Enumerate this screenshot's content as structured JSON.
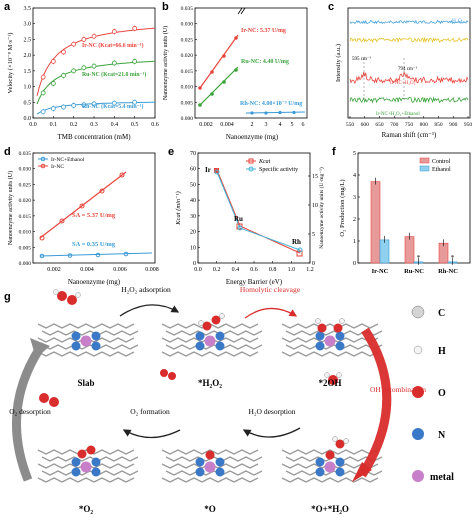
{
  "panels": {
    "a": {
      "letter": "a",
      "xlabel": "TMB concentration (mM)",
      "ylabel": "Velocity (×10⁻⁸ M·s⁻¹)",
      "legend": [
        "Ir-NC (Kcat=66.6 min⁻¹)",
        "Ru-NC (Kcat=21.0 min⁻¹)",
        "Rh-NC (Kcat=5.4 min⁻¹)"
      ],
      "xticks": [
        "0.0",
        "0.1",
        "0.2",
        "0.3",
        "0.4",
        "0.5",
        "0.6"
      ],
      "yticks": [
        "0.0",
        "0.5",
        "1.0",
        "1.5",
        "2.0",
        "2.5",
        "3.0",
        "3.5"
      ]
    },
    "b": {
      "letter": "b",
      "xlabel": "Nanoenzyme (mg)",
      "ylabel": "Nanoenzyme activity units (U)",
      "ann": [
        "Ir-NC: 5.37 U/mg",
        "Ru-NC: 4.40 U/mg",
        "Rh-NC: 4.00×10⁻³ U/mg"
      ],
      "xticks": [
        "0.002",
        "0.004",
        "2",
        "3",
        "4",
        "5",
        "6"
      ],
      "yticks": [
        "0.000",
        "0.005",
        "0.010",
        "0.015",
        "0.020",
        "0.025",
        "0.030",
        "0.035"
      ]
    },
    "c": {
      "letter": "c",
      "xlabel": "Raman shift (cm⁻¹)",
      "ylabel": "Intensity (a.u.)",
      "ann": [
        "H₂O₂",
        "595 cm⁻¹",
        "794 cm⁻¹",
        "Ir-NC+H₂O₂",
        "Ir-NC+H₂O₂+Ethanol"
      ],
      "xticks": [
        "550",
        "600",
        "650",
        "700",
        "750",
        "800",
        "850",
        "900",
        "950"
      ]
    },
    "d": {
      "letter": "d",
      "xlabel": "Nanoenzyme (mg)",
      "ylabel": "Nanoenzyme activity units (U)",
      "legend": [
        "Ir-NC+Ethanol",
        "Ir-NC"
      ],
      "ann": [
        "SA = 5.37 U/mg",
        "SA = 0.35 U/mg"
      ],
      "xticks": [
        "0.002",
        "0.004",
        "0.006",
        "0.008"
      ],
      "yticks": [
        "0.000",
        "0.005",
        "0.010",
        "0.015",
        "0.020",
        "0.025",
        "0.030",
        "0.035"
      ]
    },
    "e": {
      "letter": "e",
      "xlabel": "Energy Barrier (eV)",
      "ylabel": "Kcat (min⁻¹)",
      "ylabel2": "Nanoenzyme activity units (U·mg⁻¹)",
      "legend": [
        "Kcat",
        "Specific activity"
      ],
      "points": [
        "Ir",
        "Ru",
        "Rh"
      ],
      "xticks": [
        "0.0",
        "0.2",
        "0.4",
        "0.6",
        "0.8",
        "1.0",
        "1.2"
      ],
      "yticks": [
        "0",
        "10",
        "20",
        "30",
        "40",
        "50",
        "60",
        "70"
      ],
      "y2ticks": [
        "0",
        "5",
        "10",
        "15"
      ]
    },
    "f": {
      "letter": "f",
      "ylabel": "O₂ Production (mg/L)",
      "legend": [
        "Control",
        "Ethanol"
      ],
      "categories": [
        "Ir-NC",
        "Ru-NC",
        "Rh-NC"
      ],
      "star": "*",
      "yticks": [
        "0",
        "1",
        "2",
        "3",
        "4",
        "5"
      ]
    },
    "g": {
      "letter": "g",
      "states": [
        "Slab",
        "*H₂O₂",
        "*2OH",
        "*O+*H₂O",
        "*O",
        "*O₂"
      ],
      "steps": [
        "H₂O₂ adsorption",
        "Homolytic cleavage",
        "OH recombination",
        "H₂O desorption",
        "O₂ formation",
        "O₂ desorption"
      ],
      "legend": [
        "C",
        "H",
        "O",
        "N",
        "metal"
      ]
    }
  },
  "chart_data": [
    {
      "type": "scatter",
      "title": "",
      "xlabel": "TMB concentration (mM)",
      "ylabel": "Velocity (×10⁻⁸ M·s⁻¹)",
      "xlim": [
        0,
        0.6
      ],
      "ylim": [
        0,
        3.5
      ],
      "series": [
        {
          "name": "Ir-NC (Kcat=66.6 min⁻¹)",
          "x": [
            0.05,
            0.1,
            0.15,
            0.2,
            0.25,
            0.3,
            0.4,
            0.5
          ],
          "y": [
            1.3,
            1.8,
            2.1,
            2.35,
            2.5,
            2.6,
            2.75,
            2.85
          ]
        },
        {
          "name": "Ru-NC (Kcat=21.0 min⁻¹)",
          "x": [
            0.05,
            0.1,
            0.15,
            0.2,
            0.25,
            0.3,
            0.4,
            0.5
          ],
          "y": [
            0.8,
            1.1,
            1.35,
            1.5,
            1.6,
            1.65,
            1.75,
            1.8
          ]
        },
        {
          "name": "Rh-NC (Kcat=5.4 min⁻¹)",
          "x": [
            0.05,
            0.1,
            0.15,
            0.2,
            0.25,
            0.3,
            0.4,
            0.5
          ],
          "y": [
            0.2,
            0.3,
            0.35,
            0.4,
            0.42,
            0.45,
            0.47,
            0.5
          ]
        }
      ]
    },
    {
      "type": "bar",
      "title": "",
      "ylabel": "O₂ Production (mg/L)",
      "categories": [
        "Ir-NC",
        "Ru-NC",
        "Rh-NC"
      ],
      "ylim": [
        0,
        5
      ],
      "series": [
        {
          "name": "Control",
          "values": [
            3.7,
            1.2,
            0.9
          ]
        },
        {
          "name": "Ethanol",
          "values": [
            1.05,
            0.05,
            0.05
          ]
        }
      ]
    }
  ],
  "colors": {
    "red": "#e8453c",
    "green": "#3aa23a",
    "blue": "#3a9bd6",
    "pink": "#e79a9a",
    "lightblue": "#8fd0ef",
    "cyan": "#45b6d8"
  }
}
